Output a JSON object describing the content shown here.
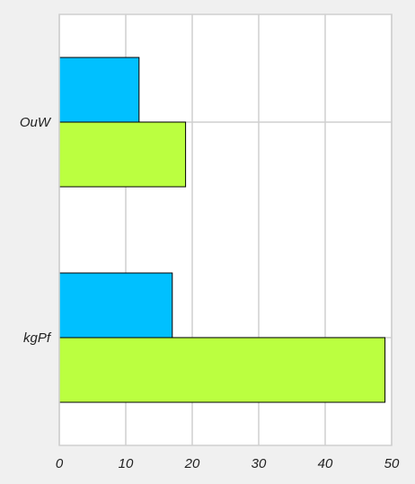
{
  "chart_data": {
    "type": "bar",
    "orientation": "horizontal",
    "categories": [
      "OuW",
      "kgPf"
    ],
    "series": [
      {
        "values": [
          12,
          17
        ],
        "color": "#00c0ff"
      },
      {
        "values": [
          19,
          49
        ],
        "color": "#bbff40"
      }
    ],
    "xlim": [
      0,
      50
    ],
    "xticks": [
      "0",
      "10",
      "20",
      "30",
      "40",
      "50"
    ],
    "grid": true,
    "background_color": "#f0f0f0",
    "plot_background_color": "#ffffff",
    "gridline_color": "#cfcfcf"
  }
}
